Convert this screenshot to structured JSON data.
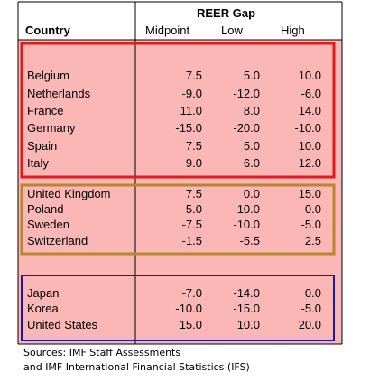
{
  "chart_data": {
    "type": "table",
    "title": "",
    "group_header": "REER Gap",
    "columns": [
      "Country",
      "Midpoint",
      "Low",
      "High"
    ],
    "colors": {
      "background_fill": "#fbb6b6",
      "group_1_border": "#e01b1b",
      "group_2_border": "#b8862e",
      "group_3_border": "#1a1aa6",
      "grid_lines": "#000000"
    },
    "groups": [
      {
        "border_color": "#e01b1b",
        "rows": [
          {
            "country": "Belgium",
            "midpoint": "7.5",
            "low": "5.0",
            "high": "10.0"
          },
          {
            "country": "Netherlands",
            "midpoint": "-9.0",
            "low": "-12.0",
            "high": "-6.0"
          },
          {
            "country": "France",
            "midpoint": "11.0",
            "low": "8.0",
            "high": "14.0"
          },
          {
            "country": "Germany",
            "midpoint": "-15.0",
            "low": "-20.0",
            "high": "-10.0"
          },
          {
            "country": "Spain",
            "midpoint": "7.5",
            "low": "5.0",
            "high": "10.0"
          },
          {
            "country": "Italy",
            "midpoint": "9.0",
            "low": "6.0",
            "high": "12.0"
          }
        ]
      },
      {
        "border_color": "#b8862e",
        "rows": [
          {
            "country": "United Kingdom",
            "midpoint": "7.5",
            "low": "0.0",
            "high": "15.0"
          },
          {
            "country": "Poland",
            "midpoint": "-5.0",
            "low": "-10.0",
            "high": "0.0"
          },
          {
            "country": "Sweden",
            "midpoint": "-7.5",
            "low": "-10.0",
            "high": "-5.0"
          },
          {
            "country": "Switzerland",
            "midpoint": "-1.5",
            "low": "-5.5",
            "high": "2.5"
          }
        ]
      },
      {
        "border_color": "#1a1aa6",
        "rows": [
          {
            "country": "Japan",
            "midpoint": "-7.0",
            "low": "-14.0",
            "high": "0.0"
          },
          {
            "country": "Korea",
            "midpoint": "-10.0",
            "low": "-15.0",
            "high": "-5.0"
          },
          {
            "country": "United States",
            "midpoint": "15.0",
            "low": "10.0",
            "high": "20.0"
          }
        ]
      }
    ]
  },
  "sources": {
    "line1": "Sources: IMF Staff Assessments",
    "line2": "and IMF International Financial Statistics (IFS)"
  }
}
